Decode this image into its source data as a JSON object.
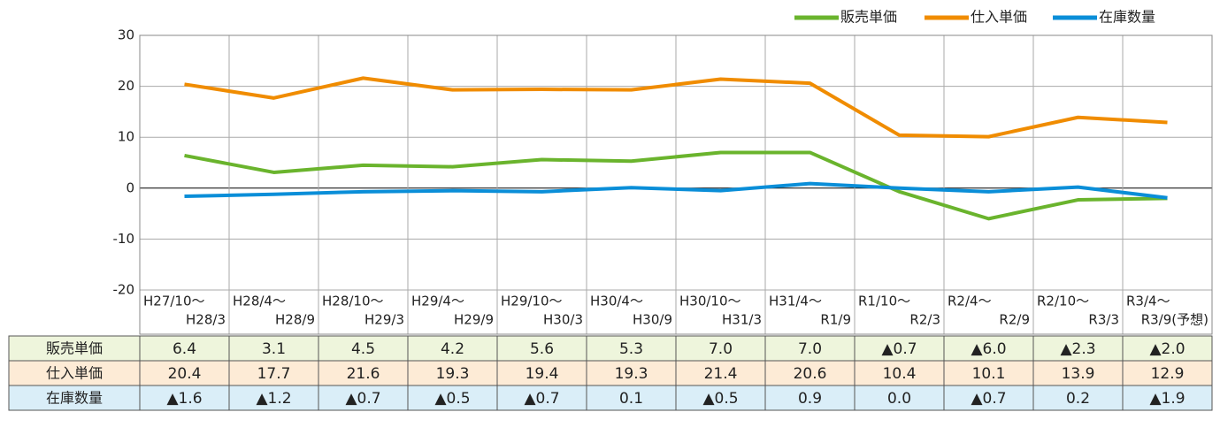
{
  "chart_data": {
    "type": "line",
    "categories": [
      [
        "H27/10～",
        "H28/3"
      ],
      [
        "H28/4～",
        "H28/9"
      ],
      [
        "H28/10～",
        "H29/3"
      ],
      [
        "H29/4～",
        "H29/9"
      ],
      [
        "H29/10～",
        "H30/3"
      ],
      [
        "H30/4～",
        "H30/9"
      ],
      [
        "H30/10～",
        "H31/3"
      ],
      [
        "H31/4～",
        "R1/9"
      ],
      [
        "R1/10～",
        "R2/3"
      ],
      [
        "R2/4～",
        "R2/9"
      ],
      [
        "R2/10～",
        "R3/3"
      ],
      [
        "R3/4～",
        "R3/9(予想)"
      ]
    ],
    "series": [
      {
        "name": "販売単価",
        "color": "#6ab42d",
        "row_color": "#eef5dc",
        "values": [
          6.4,
          3.1,
          4.5,
          4.2,
          5.6,
          5.3,
          7.0,
          7.0,
          -0.7,
          -6.0,
          -2.3,
          -2.0
        ],
        "value_labels": [
          "6.4",
          "3.1",
          "4.5",
          "4.2",
          "5.6",
          "5.3",
          "7.0",
          "7.0",
          "▲0.7",
          "▲6.0",
          "▲2.3",
          "▲2.0"
        ]
      },
      {
        "name": "仕入単価",
        "color": "#f08c00",
        "row_color": "#fdebd6",
        "values": [
          20.4,
          17.7,
          21.6,
          19.3,
          19.4,
          19.3,
          21.4,
          20.6,
          10.4,
          10.1,
          13.9,
          12.9
        ],
        "value_labels": [
          "20.4",
          "17.7",
          "21.6",
          "19.3",
          "19.4",
          "19.3",
          "21.4",
          "20.6",
          "10.4",
          "10.1",
          "13.9",
          "12.9"
        ]
      },
      {
        "name": "在庫数量",
        "color": "#0a8ed8",
        "row_color": "#daeef8",
        "values": [
          -1.6,
          -1.2,
          -0.7,
          -0.5,
          -0.7,
          0.1,
          -0.5,
          0.9,
          0.0,
          -0.7,
          0.2,
          -1.9
        ],
        "value_labels": [
          "▲1.6",
          "▲1.2",
          "▲0.7",
          "▲0.5",
          "▲0.7",
          "0.1",
          "▲0.5",
          "0.9",
          "0.0",
          "▲0.7",
          "0.2",
          "▲1.9"
        ]
      }
    ],
    "ylim": [
      -20,
      30
    ],
    "yticks": [
      -20,
      -10,
      0,
      10,
      20,
      30
    ],
    "grid": true,
    "legend": "top-right"
  }
}
